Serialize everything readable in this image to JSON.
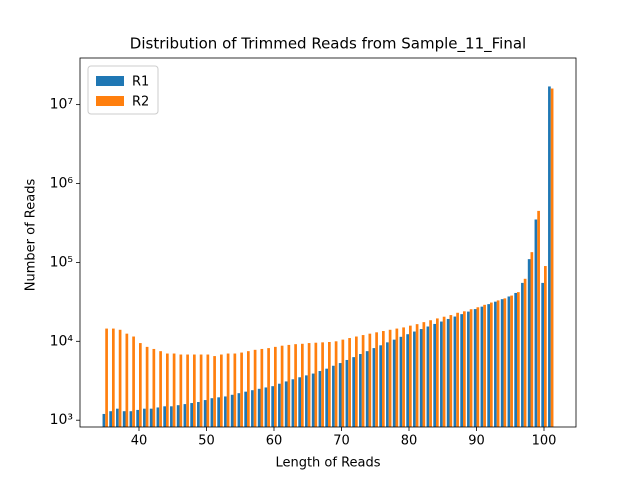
{
  "chart_data": {
    "type": "bar",
    "title": "Distribution of Trimmed Reads from Sample_11_Final",
    "xlabel": "Length of Reads",
    "ylabel": "Number of Reads",
    "x": [
      35,
      36,
      37,
      38,
      39,
      40,
      41,
      42,
      43,
      44,
      45,
      46,
      47,
      48,
      49,
      50,
      51,
      52,
      53,
      54,
      55,
      56,
      57,
      58,
      59,
      60,
      61,
      62,
      63,
      64,
      65,
      66,
      67,
      68,
      69,
      70,
      71,
      72,
      73,
      74,
      75,
      76,
      77,
      78,
      79,
      80,
      81,
      82,
      83,
      84,
      85,
      86,
      87,
      88,
      89,
      90,
      91,
      92,
      93,
      94,
      95,
      96,
      97,
      98,
      99,
      100,
      101
    ],
    "series": [
      {
        "name": "R1",
        "color": "#1f77b4",
        "values": [
          1200,
          1300,
          1400,
          1300,
          1300,
          1350,
          1400,
          1400,
          1450,
          1500,
          1500,
          1550,
          1600,
          1650,
          1700,
          1800,
          1900,
          1950,
          2000,
          2100,
          2200,
          2300,
          2400,
          2500,
          2600,
          2700,
          2900,
          3100,
          3300,
          3500,
          3700,
          3900,
          4200,
          4500,
          4900,
          5300,
          5800,
          6300,
          6900,
          7500,
          8200,
          8900,
          9700,
          10500,
          11400,
          12300,
          13300,
          14300,
          15400,
          16600,
          17800,
          19200,
          20600,
          22100,
          23800,
          25600,
          27500,
          29600,
          31800,
          34200,
          37000,
          41000,
          55000,
          110000,
          350000,
          55000,
          17000000
        ]
      },
      {
        "name": "R2",
        "color": "#ff7f0e",
        "values": [
          14500,
          14500,
          14000,
          12500,
          11500,
          9500,
          8500,
          8000,
          7500,
          7000,
          7000,
          6800,
          6800,
          6800,
          6800,
          6800,
          6500,
          6800,
          7000,
          7000,
          7200,
          7500,
          7800,
          8000,
          8200,
          8500,
          8800,
          9000,
          9200,
          9300,
          9500,
          9600,
          9700,
          9800,
          10000,
          10500,
          11000,
          11500,
          12000,
          12500,
          13000,
          13500,
          14000,
          14500,
          15000,
          15800,
          16500,
          17500,
          18500,
          19500,
          20500,
          21500,
          23000,
          24000,
          25500,
          27000,
          29000,
          31000,
          33000,
          35000,
          38000,
          42000,
          62000,
          135000,
          450000,
          90000,
          16000000
        ]
      }
    ],
    "xlim": [
      31.26,
      104.74
    ],
    "xticks": [
      40,
      50,
      60,
      70,
      80,
      90,
      100
    ],
    "ylim": [
      820,
      39000000
    ],
    "yscale": "log",
    "yticks": [
      {
        "value": 1000,
        "label": "10³"
      },
      {
        "value": 10000,
        "label": "10⁴"
      },
      {
        "value": 100000,
        "label": "10⁵"
      },
      {
        "value": 1000000,
        "label": "10⁶"
      },
      {
        "value": 10000000,
        "label": "10⁷"
      }
    ],
    "legend": "upper left",
    "grid": false
  }
}
